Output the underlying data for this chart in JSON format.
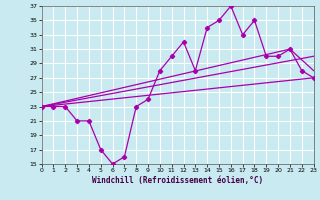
{
  "title": "",
  "xlabel": "Windchill (Refroidissement éolien,°C)",
  "ylabel": "",
  "bg_color": "#c8eaf0",
  "grid_color": "#ffffff",
  "line_color": "#aa00aa",
  "xmin": 0,
  "xmax": 23,
  "ymin": 15,
  "ymax": 37,
  "yticks": [
    15,
    17,
    19,
    21,
    23,
    25,
    27,
    29,
    31,
    33,
    35,
    37
  ],
  "xticks": [
    0,
    1,
    2,
    3,
    4,
    5,
    6,
    7,
    8,
    9,
    10,
    11,
    12,
    13,
    14,
    15,
    16,
    17,
    18,
    19,
    20,
    21,
    22,
    23
  ],
  "line1_x": [
    0,
    1,
    2,
    3,
    4,
    5,
    6,
    7,
    8,
    9,
    10,
    11,
    12,
    13,
    14,
    15,
    16,
    17,
    18,
    19,
    20,
    21,
    22,
    23
  ],
  "line1_y": [
    23,
    23,
    23,
    21,
    21,
    17,
    15,
    16,
    23,
    24,
    28,
    30,
    32,
    28,
    34,
    35,
    37,
    33,
    35,
    30,
    30,
    31,
    28,
    27
  ],
  "line2_x": [
    0,
    23
  ],
  "line2_y": [
    23,
    27
  ],
  "line3_x": [
    0,
    21,
    23
  ],
  "line3_y": [
    23,
    31,
    28
  ],
  "line4_x": [
    0,
    23
  ],
  "line4_y": [
    23,
    30
  ]
}
